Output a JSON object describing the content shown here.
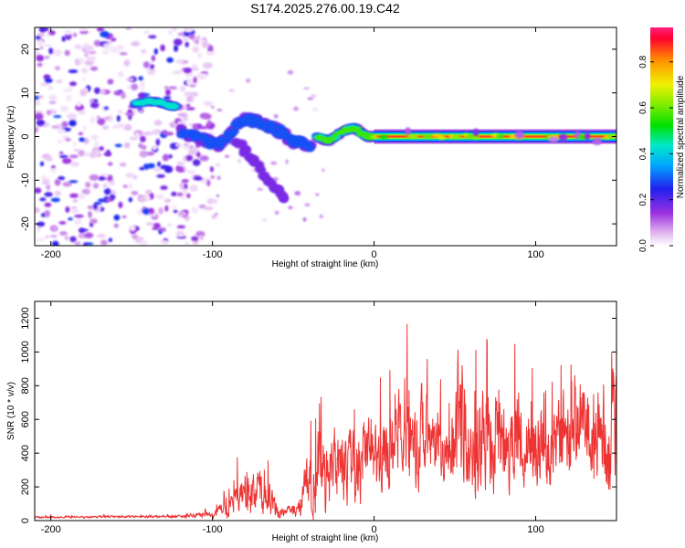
{
  "title": "S174.2025.276.00.19.C42",
  "chart_data": [
    {
      "type": "heatmap",
      "name": "spectrogram",
      "xlabel": "Height of straight line (km)",
      "ylabel": "Frequency (Hz)",
      "xlim": [
        -210,
        150
      ],
      "ylim": [
        -25,
        25
      ],
      "xticks": [
        -200,
        -100,
        0,
        100
      ],
      "yticks": [
        -20,
        -10,
        0,
        10,
        20
      ],
      "colorbar": {
        "label": "Normalized spectral amplitude",
        "range": [
          0.0,
          0.95
        ],
        "ticks": [
          "0.0",
          "0.2",
          "0.4",
          "0.6",
          "0.8"
        ]
      },
      "features": [
        {
          "name": "noise-field",
          "x_range": [
            -210,
            -115
          ],
          "y_range": [
            -25,
            25
          ],
          "amplitude": [
            0.02,
            0.3
          ]
        },
        {
          "name": "noise-band",
          "x_range": [
            -122,
            -100
          ],
          "y_range": [
            -25,
            25
          ],
          "amplitude": [
            0.02,
            0.25
          ]
        },
        {
          "name": "early-tone",
          "points": [
            [
              -148,
              7.5
            ],
            [
              -140,
              8
            ],
            [
              -134,
              7.8
            ],
            [
              -128,
              7.2
            ],
            [
              -123,
              6.8
            ]
          ],
          "amplitude": 0.5
        },
        {
          "name": "branch-upper",
          "points": [
            [
              -118,
              1
            ],
            [
              -105,
              -0.8
            ],
            [
              -95,
              -2
            ],
            [
              -82,
              4
            ],
            [
              -72,
              3.5
            ],
            [
              -60,
              1.5
            ],
            [
              -50,
              -1
            ],
            [
              -40,
              -2
            ]
          ],
          "amplitude": 0.35
        },
        {
          "name": "branch-lower",
          "points": [
            [
              -85,
              -1
            ],
            [
              -78,
              -4
            ],
            [
              -70,
              -8
            ],
            [
              -62,
              -12
            ],
            [
              -55,
              -14
            ]
          ],
          "amplitude": 0.25
        },
        {
          "name": "converging-tone",
          "points": [
            [
              -35,
              0
            ],
            [
              -28,
              -1
            ],
            [
              -18,
              1.5
            ],
            [
              -12,
              2
            ],
            [
              -5,
              0
            ],
            [
              0,
              0
            ]
          ],
          "amplitude": 0.6
        },
        {
          "name": "main-tone",
          "points": [
            [
              0,
              0
            ],
            [
              150,
              0
            ]
          ],
          "amplitude": 0.95
        }
      ]
    },
    {
      "type": "line",
      "name": "snr",
      "xlabel": "Height of straight line (km)",
      "ylabel": "SNR (10 * v/v)",
      "xlim": [
        -210,
        150
      ],
      "ylim": [
        0,
        1300
      ],
      "xticks": [
        -200,
        -100,
        0,
        100
      ],
      "yticks": [
        0,
        200,
        400,
        600,
        800,
        1000,
        1200
      ],
      "color": "#ee3333",
      "envelope": {
        "x": [
          -210,
          -120,
          -100,
          -90,
          -85,
          -78,
          -70,
          -65,
          -60,
          -55,
          -50,
          -45,
          -40,
          -35,
          -30,
          -25,
          -20,
          -15,
          -10,
          -5,
          0,
          5,
          10,
          15,
          20,
          25,
          30,
          35,
          40,
          45,
          50,
          53,
          56,
          60,
          65,
          70,
          75,
          80,
          85,
          90,
          95,
          100,
          105,
          110,
          115,
          120,
          125,
          130,
          135,
          140,
          145,
          150
        ],
        "base": [
          20,
          25,
          40,
          80,
          120,
          160,
          170,
          150,
          60,
          50,
          60,
          100,
          280,
          300,
          280,
          300,
          350,
          340,
          300,
          380,
          400,
          420,
          380,
          500,
          480,
          450,
          500,
          450,
          450,
          420,
          500,
          550,
          500,
          380,
          450,
          500,
          480,
          450,
          500,
          480,
          420,
          480,
          450,
          380,
          500,
          480,
          550,
          520,
          500,
          480,
          500,
          600
        ],
        "amp": [
          8,
          10,
          30,
          80,
          120,
          180,
          200,
          150,
          60,
          40,
          60,
          120,
          300,
          350,
          300,
          350,
          350,
          300,
          300,
          350,
          300,
          350,
          300,
          400,
          350,
          350,
          400,
          300,
          300,
          300,
          400,
          700,
          450,
          300,
          400,
          500,
          400,
          350,
          400,
          400,
          300,
          400,
          350,
          300,
          400,
          400,
          400,
          400,
          400,
          450,
          500,
          650
        ]
      }
    }
  ]
}
